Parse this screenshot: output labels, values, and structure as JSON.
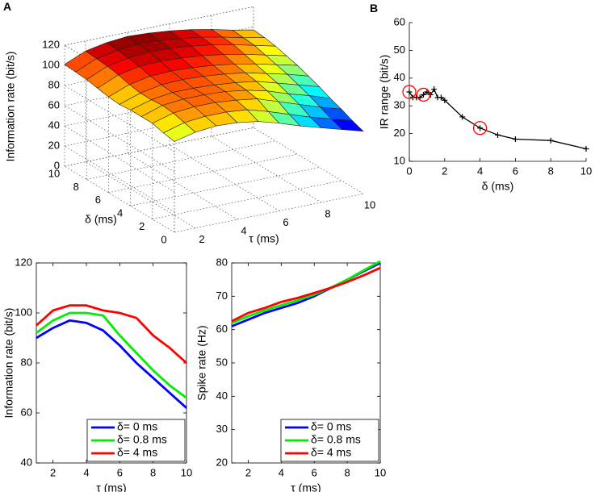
{
  "figure": {
    "panel_a": "A",
    "panel_b": "B"
  },
  "chart_data": [
    {
      "id": "surface",
      "type": "surface3d",
      "panel": "A",
      "title": "",
      "xlabel": "τ (ms)",
      "ylabel": "δ (ms)",
      "zlabel": "Information rate (bit/s)",
      "x_ticks": [
        "2",
        "4",
        "6",
        "8",
        "10"
      ],
      "y_ticks": [
        "0",
        "2",
        "4",
        "6",
        "8",
        "10"
      ],
      "z_ticks": [
        "0",
        "20",
        "40",
        "60",
        "80",
        "100",
        "120"
      ],
      "xlim": [
        1,
        10
      ],
      "ylim": [
        0,
        10
      ],
      "zlim": [
        0,
        120
      ],
      "tau": [
        1,
        2,
        3,
        4,
        5,
        6,
        7,
        8,
        9,
        10
      ],
      "delta": [
        0,
        1,
        2,
        3,
        4,
        5,
        6,
        7,
        8,
        9,
        10
      ],
      "z": [
        [
          90,
          95,
          97,
          96,
          93,
          87,
          80,
          74,
          68,
          62
        ],
        [
          92,
          98,
          100,
          100,
          98,
          92,
          85,
          78,
          72,
          66
        ],
        [
          95,
          101,
          103,
          103,
          101,
          98,
          91,
          84,
          77,
          71
        ],
        [
          95,
          102,
          104,
          104,
          103,
          100,
          95,
          88,
          82,
          75
        ],
        [
          95,
          101,
          104,
          104,
          103,
          101,
          98,
          92,
          86,
          80
        ],
        [
          94,
          101,
          105,
          106,
          105,
          103,
          100,
          95,
          90,
          84
        ],
        [
          95,
          103,
          107,
          108,
          107,
          105,
          102,
          98,
          93,
          88
        ],
        [
          97,
          106,
          110,
          111,
          110,
          108,
          105,
          101,
          96,
          91
        ],
        [
          99,
          108,
          112,
          114,
          113,
          111,
          108,
          104,
          99,
          94
        ],
        [
          100,
          109,
          113,
          115,
          114,
          112,
          109,
          105,
          100,
          96
        ],
        [
          101,
          110,
          114,
          116,
          115,
          113,
          110,
          106,
          101,
          97
        ]
      ]
    },
    {
      "id": "ir-range",
      "type": "line",
      "panel": "B",
      "xlabel": "δ (ms)",
      "ylabel": "IR range (bit/s)",
      "xlim": [
        0,
        10
      ],
      "ylim": [
        10,
        60
      ],
      "x_ticks": [
        "0",
        "2",
        "4",
        "6",
        "8",
        "10"
      ],
      "y_ticks": [
        "10",
        "20",
        "30",
        "40",
        "50",
        "60"
      ],
      "x": [
        0,
        0.2,
        0.4,
        0.6,
        0.8,
        1.0,
        1.2,
        1.4,
        1.6,
        1.8,
        2,
        3,
        4,
        5,
        6,
        8,
        10
      ],
      "y": [
        35,
        33,
        33,
        33,
        34,
        35,
        34,
        36,
        33,
        33,
        32,
        26,
        22,
        19.5,
        18,
        17.5,
        14.5
      ],
      "highlighted_x": [
        0,
        0.8,
        4
      ]
    },
    {
      "id": "info-rate",
      "type": "line",
      "xlabel": "τ (ms)",
      "ylabel": "Information rate (bit/s)",
      "xlim": [
        1,
        10
      ],
      "ylim": [
        40,
        120
      ],
      "x_ticks": [
        "2",
        "4",
        "6",
        "8",
        "10"
      ],
      "y_ticks": [
        "40",
        "60",
        "80",
        "100",
        "120"
      ],
      "x": [
        1,
        2,
        3,
        4,
        5,
        6,
        7,
        8,
        9,
        10
      ],
      "series": [
        {
          "name": "δ= 0 ms",
          "color": "#0000ff",
          "values": [
            90,
            94,
            97,
            96,
            93,
            87,
            80,
            74,
            68,
            62
          ]
        },
        {
          "name": "δ= 0.8 ms",
          "color": "#00ee00",
          "values": [
            92,
            97,
            100,
            100,
            99,
            91,
            84,
            77,
            71,
            66
          ]
        },
        {
          "name": "δ= 4 ms",
          "color": "#ff0000",
          "values": [
            95,
            101,
            103,
            103,
            101,
            100,
            98,
            91,
            86,
            80
          ]
        }
      ]
    },
    {
      "id": "spike-rate",
      "type": "line",
      "xlabel": "τ (ms)",
      "ylabel": "Spike rate (Hz)",
      "xlim": [
        1,
        10
      ],
      "ylim": [
        20,
        80
      ],
      "x_ticks": [
        "2",
        "4",
        "6",
        "8",
        "10"
      ],
      "y_ticks": [
        "20",
        "30",
        "40",
        "50",
        "60",
        "70",
        "80"
      ],
      "x": [
        1,
        2,
        3,
        4,
        5,
        6,
        7,
        8,
        9,
        10
      ],
      "series": [
        {
          "name": "δ= 0 ms",
          "color": "#0000ff",
          "values": [
            61,
            63,
            65,
            66.5,
            68,
            70,
            72.5,
            75,
            77.5,
            80
          ]
        },
        {
          "name": "δ= 0.8 ms",
          "color": "#00ee00",
          "values": [
            62,
            64,
            65.8,
            67.3,
            68.8,
            70.5,
            72.6,
            75,
            77.8,
            80.5
          ]
        },
        {
          "name": "δ= 4 ms",
          "color": "#ff0000",
          "values": [
            62.5,
            65,
            66.5,
            68.3,
            69.5,
            71,
            72.5,
            74.3,
            76.3,
            78.5
          ]
        }
      ]
    }
  ]
}
